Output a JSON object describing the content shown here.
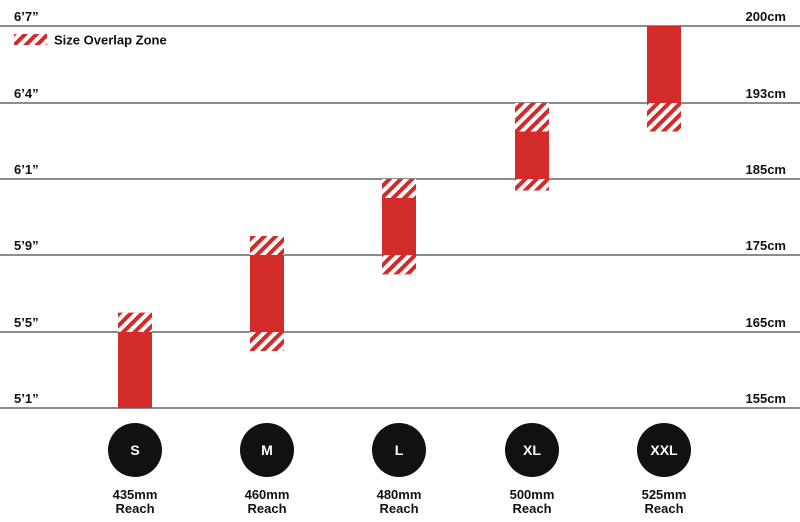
{
  "chart_data": {
    "type": "bar",
    "title": "",
    "legend": {
      "label": "Size Overlap Zone",
      "placement": "top-left"
    },
    "y_axis_left": {
      "ticks": [
        "5’1”",
        "5’5”",
        "5’9”",
        "6’1”",
        "6’4”",
        "6’7”"
      ]
    },
    "y_axis_right": {
      "unit": "cm",
      "ticks": [
        "155cm",
        "165cm",
        "175cm",
        "185cm",
        "193cm",
        "200cm"
      ],
      "values": [
        155,
        165,
        175,
        185,
        193,
        200
      ]
    },
    "ylim": [
      155,
      200
    ],
    "grid": true,
    "colors": {
      "bar": "#d32a2a",
      "hatch": "#d32a2a",
      "line": "#1a1a1a",
      "badge": "#111111",
      "badge_text": "#ffffff"
    },
    "categories": [
      "S",
      "M",
      "L",
      "XL",
      "XXL"
    ],
    "series": [
      {
        "size": "S",
        "reach": "435mm",
        "reach_word": "Reach",
        "min": 155,
        "max": 167.5,
        "overlap_low": null,
        "overlap_high": [
          165,
          167.5
        ]
      },
      {
        "size": "M",
        "reach": "460mm",
        "reach_word": "Reach",
        "min": 162.5,
        "max": 177.5,
        "overlap_low": [
          162.5,
          165
        ],
        "overlap_high": [
          175,
          177.5
        ]
      },
      {
        "size": "L",
        "reach": "480mm",
        "reach_word": "Reach",
        "min": 172.5,
        "max": 185,
        "overlap_low": [
          172.5,
          175
        ],
        "overlap_high": [
          182.5,
          185
        ]
      },
      {
        "size": "XL",
        "reach": "500mm",
        "reach_word": "Reach",
        "min": 183.5,
        "max": 193,
        "overlap_low": [
          183.5,
          185
        ],
        "overlap_high": [
          190,
          193
        ]
      },
      {
        "size": "XXL",
        "reach": "525mm",
        "reach_word": "Reach",
        "min": 190,
        "max": 200,
        "overlap_low": [
          190,
          193
        ],
        "overlap_high": null
      }
    ]
  }
}
